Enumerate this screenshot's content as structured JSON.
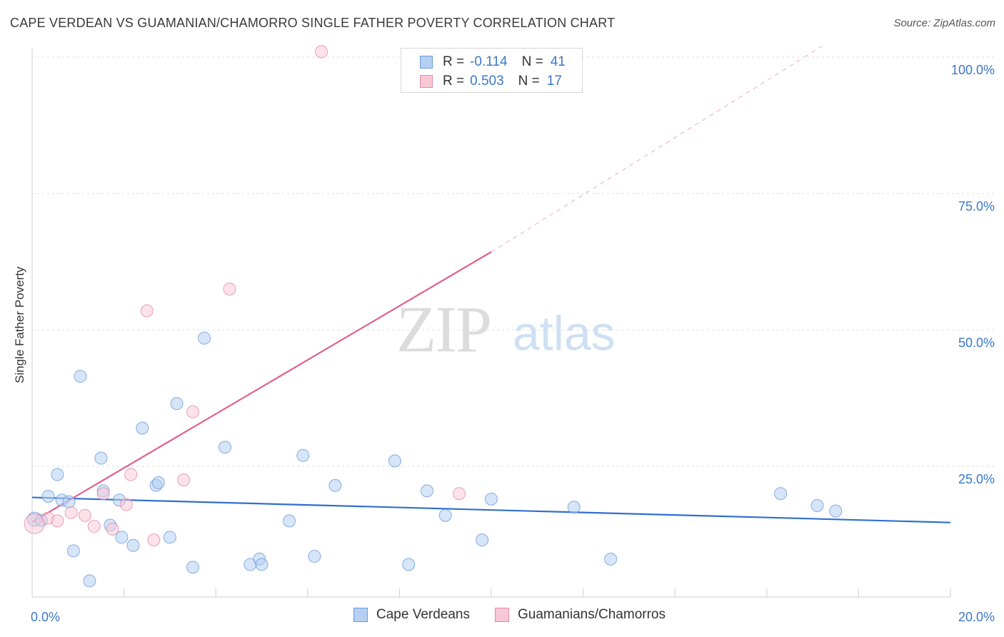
{
  "header": {
    "title": "CAPE VERDEAN VS GUAMANIAN/CHAMORRO SINGLE FATHER POVERTY CORRELATION CHART",
    "source": "Source: ZipAtlas.com"
  },
  "watermark": {
    "zip": "ZIP",
    "atlas": "atlas"
  },
  "legend_top": {
    "rows": [
      {
        "r_label": "R =",
        "r_value": "-0.114",
        "n_label": "N =",
        "n_value": "41",
        "color": "#b5d0f2",
        "border": "#6b9bd8"
      },
      {
        "r_label": "R =",
        "r_value": "0.503",
        "n_label": "N =",
        "n_value": "17",
        "color": "#f9c8d6",
        "border": "#e58aa8"
      }
    ]
  },
  "legend_bottom": {
    "items": [
      {
        "label": "Cape Verdeans",
        "color": "#b5d0f2",
        "border": "#6b9bd8"
      },
      {
        "label": "Guamanians/Chamorros",
        "color": "#f9c8d6",
        "border": "#e58aa8"
      }
    ]
  },
  "chart_data": {
    "type": "scatter",
    "title": "CAPE VERDEAN VS GUAMANIAN/CHAMORRO SINGLE FATHER POVERTY CORRELATION CHART",
    "ylabel": "Single Father Poverty",
    "xlabel": "",
    "xlim": [
      0,
      20
    ],
    "ylim": [
      0,
      102
    ],
    "x_tick_labels": [
      "0.0%",
      "20.0%"
    ],
    "y_tick_labels": [
      "25.0%",
      "50.0%",
      "75.0%",
      "100.0%"
    ],
    "y_ticks": [
      25,
      50,
      75,
      100
    ],
    "grid": true,
    "legend_position": "top-center",
    "series": [
      {
        "name": "Cape Verdeans",
        "color": "#6b9bd8",
        "fill": "#b5d0f2",
        "points": [
          [
            0.05,
            15.3
          ],
          [
            0.2,
            15.1
          ],
          [
            0.35,
            19.5
          ],
          [
            0.55,
            23.5
          ],
          [
            0.65,
            18.8
          ],
          [
            0.8,
            18.5
          ],
          [
            0.9,
            9.5
          ],
          [
            1.05,
            41.5
          ],
          [
            1.25,
            4.0
          ],
          [
            1.5,
            26.5
          ],
          [
            1.55,
            20.5
          ],
          [
            1.7,
            14.2
          ],
          [
            1.9,
            18.8
          ],
          [
            1.95,
            12.0
          ],
          [
            2.2,
            10.5
          ],
          [
            2.4,
            32.0
          ],
          [
            2.7,
            21.5
          ],
          [
            2.75,
            22.0
          ],
          [
            3.0,
            12.0
          ],
          [
            3.15,
            36.5
          ],
          [
            3.5,
            6.5
          ],
          [
            3.75,
            48.5
          ],
          [
            4.2,
            28.5
          ],
          [
            4.75,
            7.0
          ],
          [
            4.95,
            8.0
          ],
          [
            5.0,
            7.0
          ],
          [
            5.6,
            15.0
          ],
          [
            5.9,
            27.0
          ],
          [
            6.15,
            8.5
          ],
          [
            6.6,
            21.5
          ],
          [
            7.9,
            26.0
          ],
          [
            8.2,
            7.0
          ],
          [
            8.6,
            20.5
          ],
          [
            9.0,
            16.0
          ],
          [
            9.8,
            11.5
          ],
          [
            10.0,
            19.0
          ],
          [
            11.8,
            17.5
          ],
          [
            12.6,
            8.0
          ],
          [
            16.3,
            20.0
          ],
          [
            17.1,
            17.8
          ],
          [
            17.5,
            16.8
          ]
        ]
      },
      {
        "name": "Guamanians/Chamorros",
        "color": "#e58aa8",
        "fill": "#f9c8d6",
        "points": [
          [
            0.05,
            14.5
          ],
          [
            0.35,
            15.5
          ],
          [
            0.55,
            15.0
          ],
          [
            0.85,
            16.5
          ],
          [
            1.15,
            16.0
          ],
          [
            1.35,
            14.0
          ],
          [
            1.55,
            20.0
          ],
          [
            1.75,
            13.5
          ],
          [
            2.05,
            18.0
          ],
          [
            2.15,
            23.5
          ],
          [
            2.5,
            53.5
          ],
          [
            2.65,
            11.5
          ],
          [
            3.3,
            22.5
          ],
          [
            3.5,
            35.0
          ],
          [
            4.3,
            57.5
          ],
          [
            6.3,
            101.0
          ],
          [
            9.3,
            20.0
          ]
        ]
      }
    ],
    "trend_lines": [
      {
        "series": "Cape Verdeans",
        "x": [
          0,
          20
        ],
        "y": [
          19.3,
          14.7
        ],
        "style": "solid"
      },
      {
        "series": "Guamanians/Chamorros",
        "x": [
          0,
          10.0
        ],
        "y": [
          14.8,
          64.3
        ],
        "style": "solid"
      },
      {
        "series": "Guamanians/Chamorros",
        "x": [
          10.0,
          17.2
        ],
        "y": [
          64.3,
          102.0
        ],
        "style": "dashed"
      }
    ]
  }
}
